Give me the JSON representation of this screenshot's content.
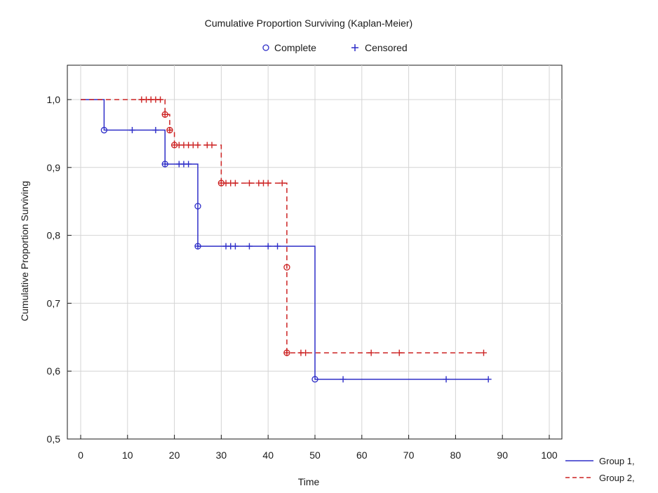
{
  "chart_data": {
    "type": "line",
    "title": "Cumulative Proportion Surviving (Kaplan-Meier)",
    "xlabel": "Time",
    "ylabel": "Cumulative Proportion Surviving",
    "xlim": [
      0,
      100
    ],
    "ylim": [
      0.5,
      1.05
    ],
    "x_ticks": [
      "0",
      "10",
      "20",
      "30",
      "40",
      "50",
      "60",
      "70",
      "80",
      "90",
      "100"
    ],
    "y_ticks": [
      "0,5",
      "0,6",
      "0,7",
      "0,8",
      "0,9",
      "1,0"
    ],
    "grid": true,
    "marker_legend": {
      "complete_label": "Complete",
      "censored_label": "Censored",
      "complete_symbol": "o",
      "censored_symbol": "+"
    },
    "legend_position": "bottom-right",
    "series": [
      {
        "name": "Group 1,",
        "color": "#2e2ec8",
        "line_style": "solid",
        "steps": [
          [
            0,
            1.0
          ],
          [
            5,
            0.955
          ],
          [
            18,
            0.905
          ],
          [
            25,
            0.784
          ],
          [
            50,
            0.588
          ],
          [
            87,
            0.588
          ]
        ],
        "complete": [
          [
            5,
            0.955
          ],
          [
            18,
            0.905
          ],
          [
            25,
            0.843
          ],
          [
            25,
            0.784
          ],
          [
            50,
            0.588
          ]
        ],
        "censored": [
          [
            11,
            0.955
          ],
          [
            16,
            0.955
          ],
          [
            18,
            0.905
          ],
          [
            21,
            0.905
          ],
          [
            22,
            0.905
          ],
          [
            23,
            0.905
          ],
          [
            25,
            0.784
          ],
          [
            31,
            0.784
          ],
          [
            32,
            0.784
          ],
          [
            33,
            0.784
          ],
          [
            36,
            0.784
          ],
          [
            40,
            0.784
          ],
          [
            42,
            0.784
          ],
          [
            56,
            0.588
          ],
          [
            78,
            0.588
          ],
          [
            87,
            0.588
          ]
        ]
      },
      {
        "name": "Group 2,",
        "color": "#cc2222",
        "line_style": "dashed",
        "steps": [
          [
            0,
            1.0
          ],
          [
            18,
            0.978
          ],
          [
            19,
            0.955
          ],
          [
            20,
            0.933
          ],
          [
            30,
            0.877
          ],
          [
            44,
            0.627
          ],
          [
            86,
            0.627
          ]
        ],
        "complete": [
          [
            18,
            0.978
          ],
          [
            19,
            0.955
          ],
          [
            20,
            0.933
          ],
          [
            30,
            0.877
          ],
          [
            44,
            0.753
          ],
          [
            44,
            0.627
          ]
        ],
        "censored": [
          [
            13,
            1.0
          ],
          [
            14,
            1.0
          ],
          [
            15,
            1.0
          ],
          [
            16,
            1.0
          ],
          [
            17,
            1.0
          ],
          [
            18,
            0.978
          ],
          [
            19,
            0.955
          ],
          [
            20,
            0.933
          ],
          [
            21,
            0.933
          ],
          [
            22,
            0.933
          ],
          [
            23,
            0.933
          ],
          [
            24,
            0.933
          ],
          [
            25,
            0.933
          ],
          [
            27,
            0.933
          ],
          [
            28,
            0.933
          ],
          [
            30,
            0.877
          ],
          [
            31,
            0.877
          ],
          [
            32,
            0.877
          ],
          [
            33,
            0.877
          ],
          [
            36,
            0.877
          ],
          [
            38,
            0.877
          ],
          [
            39,
            0.877
          ],
          [
            40,
            0.877
          ],
          [
            43,
            0.877
          ],
          [
            44,
            0.627
          ],
          [
            47,
            0.627
          ],
          [
            48,
            0.627
          ],
          [
            62,
            0.627
          ],
          [
            68,
            0.627
          ],
          [
            86,
            0.627
          ]
        ]
      }
    ]
  }
}
